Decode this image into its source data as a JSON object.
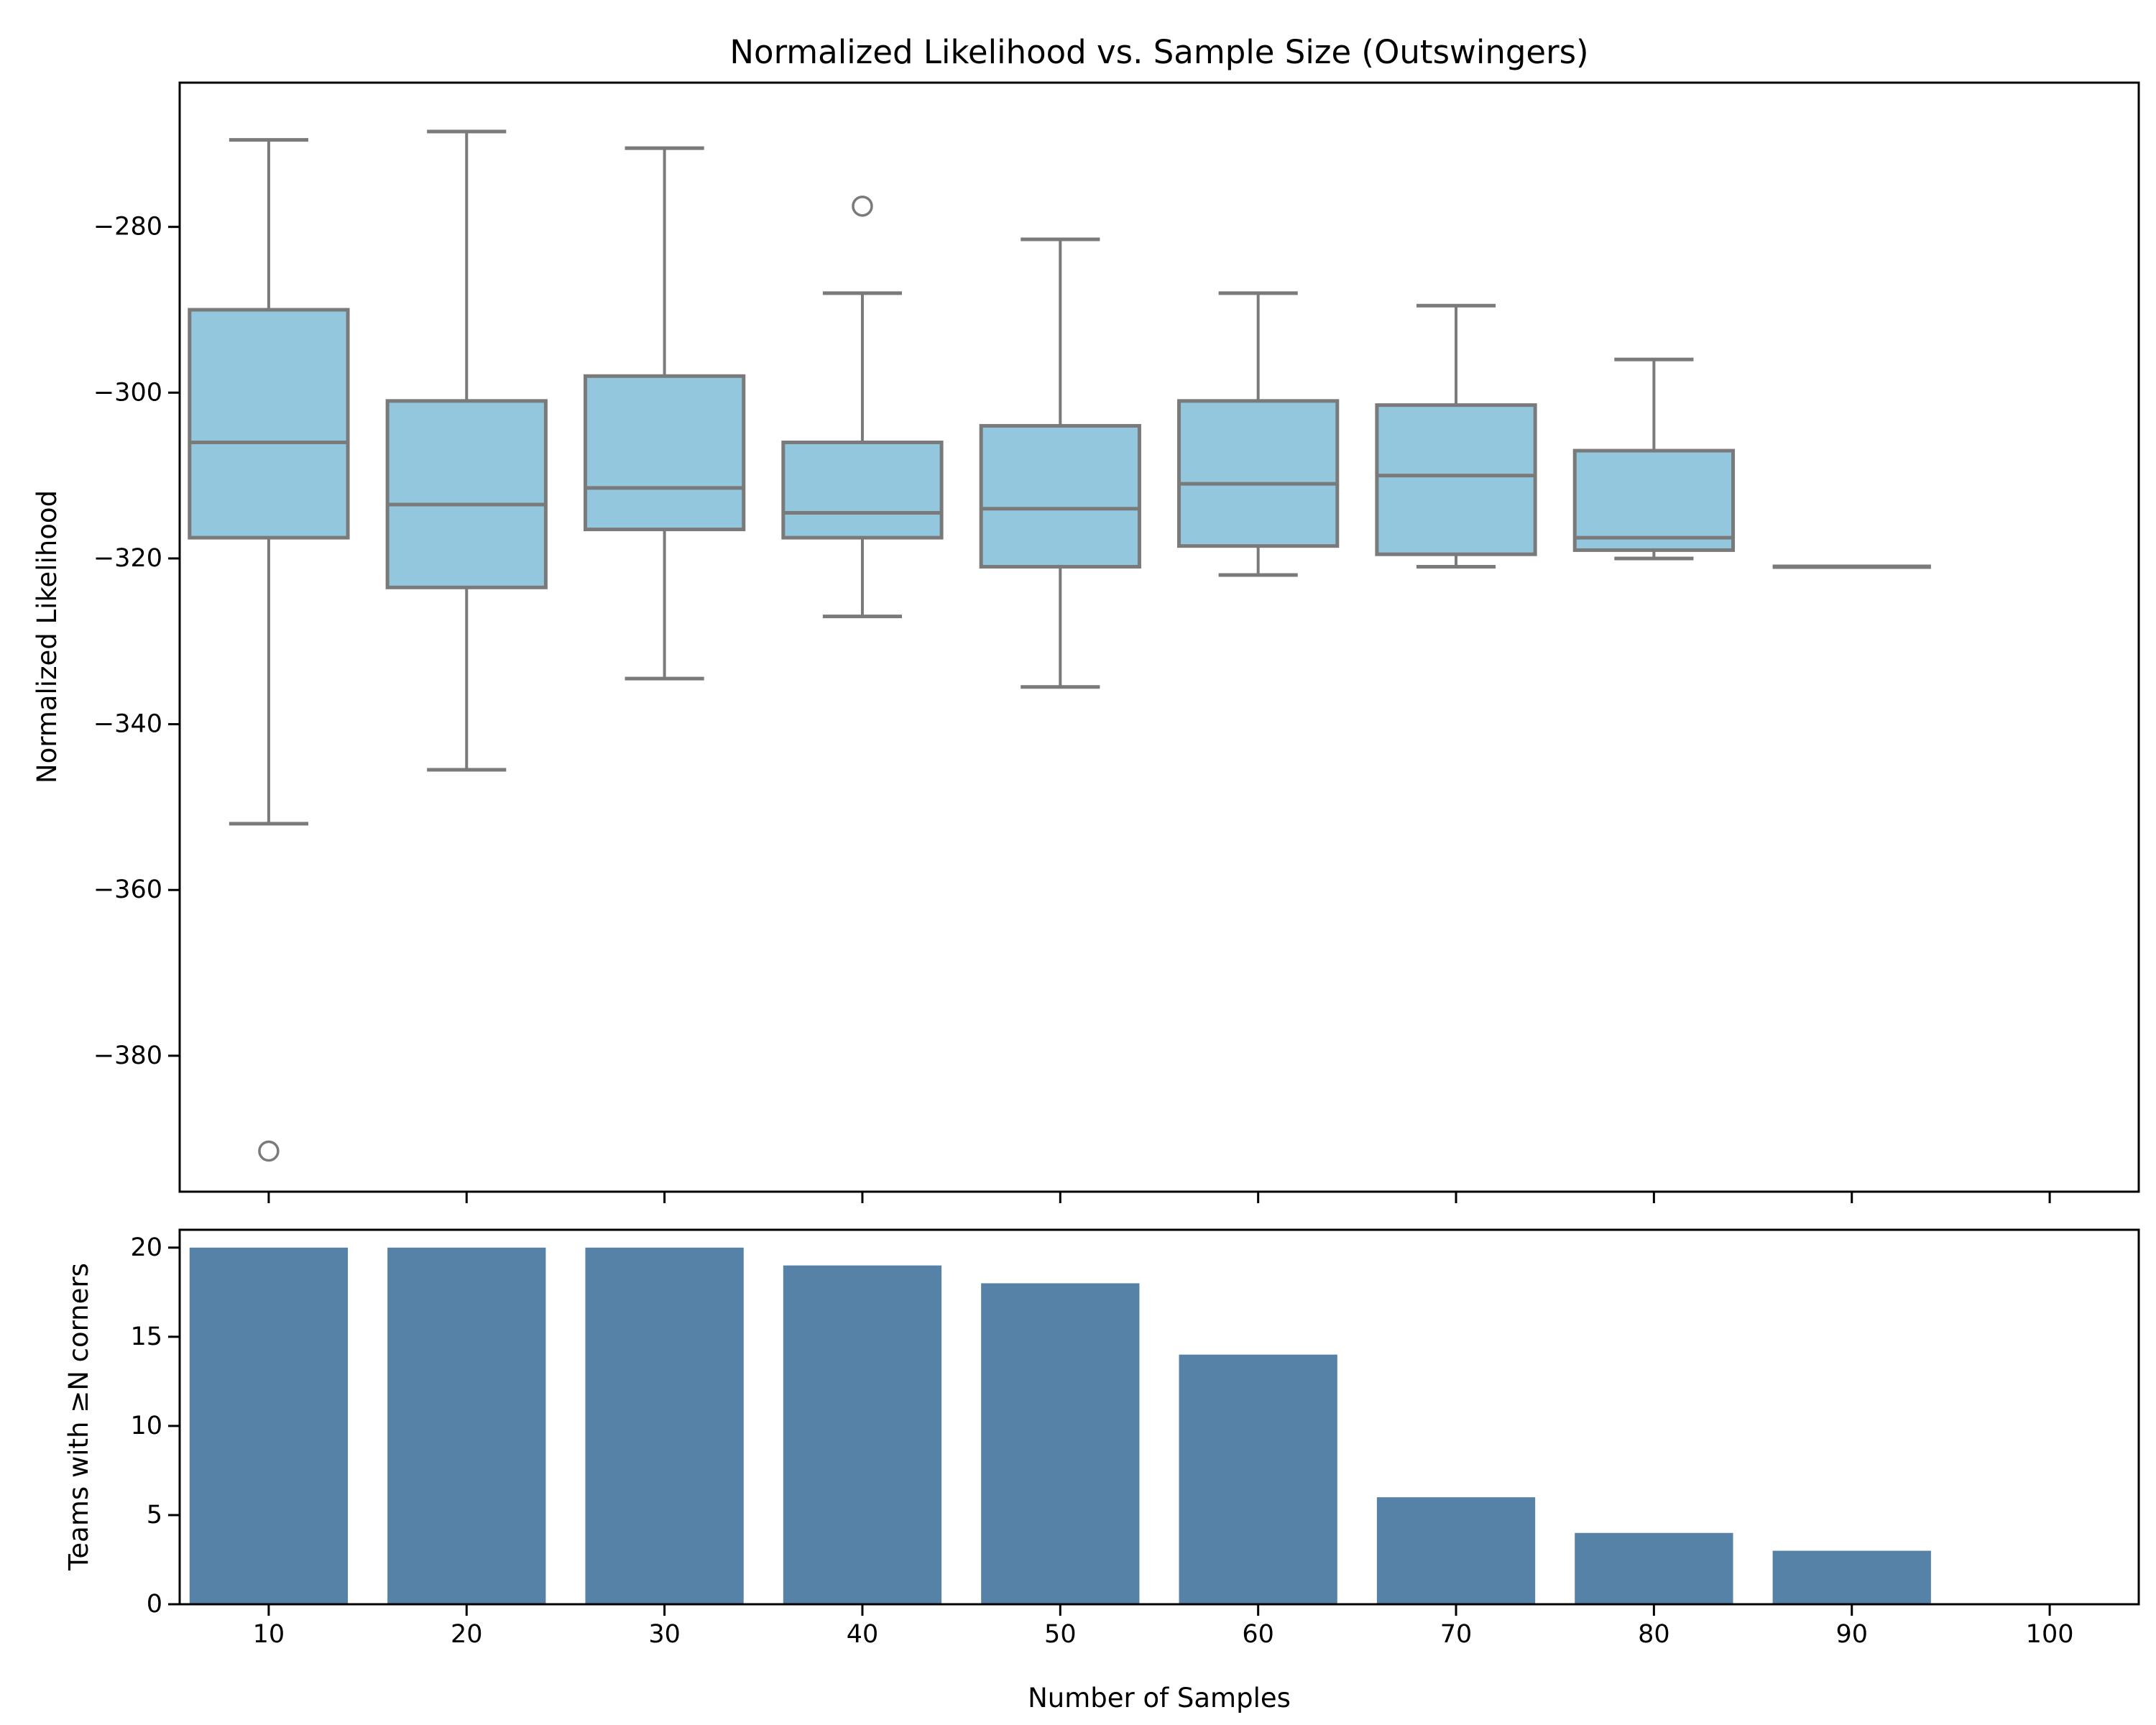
{
  "figure": {
    "background": "#ffffff",
    "title": "Normalized Likelihood vs. Sample Size (Outswingers)"
  },
  "chart_data": [
    {
      "type": "boxplot",
      "title": "Normalized Likelihood vs. Sample Size (Outswingers)",
      "ylabel": "Normalized Likelihood",
      "x_positions": [
        10,
        20,
        30,
        40,
        50,
        60,
        70,
        80,
        90,
        100
      ],
      "xlim": [
        5.5,
        104.5
      ],
      "ylim": [
        -396.4,
        -262.6
      ],
      "yticks": [
        -280,
        -300,
        -320,
        -340,
        -360,
        -380
      ],
      "ytick_labels": [
        "−280",
        "−300",
        "−320",
        "−340",
        "−360",
        "−380"
      ],
      "box_width_units": 8,
      "grid": false,
      "colors": {
        "box_fill": "#92c7de",
        "line": "#7a7a7a"
      },
      "boxes": [
        {
          "x": 10,
          "whislo": -352,
          "q1": -317.5,
          "med": -306,
          "q3": -290,
          "whishi": -269.5,
          "fliers": [
            -391.5
          ]
        },
        {
          "x": 20,
          "whislo": -345.5,
          "q1": -323.5,
          "med": -313.5,
          "q3": -301,
          "whishi": -268.5,
          "fliers": []
        },
        {
          "x": 30,
          "whislo": -334.5,
          "q1": -316.5,
          "med": -311.5,
          "q3": -298,
          "whishi": -270.5,
          "fliers": []
        },
        {
          "x": 40,
          "whislo": -327,
          "q1": -317.5,
          "med": -314.5,
          "q3": -306,
          "whishi": -288,
          "fliers": [
            -277.5
          ]
        },
        {
          "x": 50,
          "whislo": -335.5,
          "q1": -321,
          "med": -314,
          "q3": -304,
          "whishi": -281.5,
          "fliers": []
        },
        {
          "x": 60,
          "whislo": -322,
          "q1": -318.5,
          "med": -311,
          "q3": -301,
          "whishi": -288,
          "fliers": []
        },
        {
          "x": 70,
          "whislo": -321,
          "q1": -319.5,
          "med": -310,
          "q3": -301.5,
          "whishi": -289.5,
          "fliers": []
        },
        {
          "x": 80,
          "whislo": -320,
          "q1": -319,
          "med": -317.5,
          "q3": -307,
          "whishi": -296,
          "fliers": []
        },
        {
          "x": 90,
          "whislo": -321,
          "q1": -321,
          "med": -321,
          "q3": -321,
          "whishi": -321,
          "fliers": []
        }
      ]
    },
    {
      "type": "bar",
      "categories": [
        "10",
        "20",
        "30",
        "40",
        "50",
        "60",
        "70",
        "80",
        "90",
        "100"
      ],
      "x_positions": [
        10,
        20,
        30,
        40,
        50,
        60,
        70,
        80,
        90,
        100
      ],
      "values": [
        20,
        20,
        20,
        19,
        18,
        14,
        6,
        4,
        3,
        0
      ],
      "ylabel": "Teams with ≥N corners",
      "xlabel": "Number of Samples",
      "xlim": [
        5.5,
        104.5
      ],
      "ylim": [
        0,
        21
      ],
      "yticks": [
        0,
        5,
        10,
        15,
        20
      ],
      "ytick_labels": [
        "0",
        "5",
        "10",
        "15",
        "20"
      ],
      "bar_width_units": 8,
      "grid": false,
      "colors": {
        "bar_fill": "#5682a7"
      }
    }
  ]
}
